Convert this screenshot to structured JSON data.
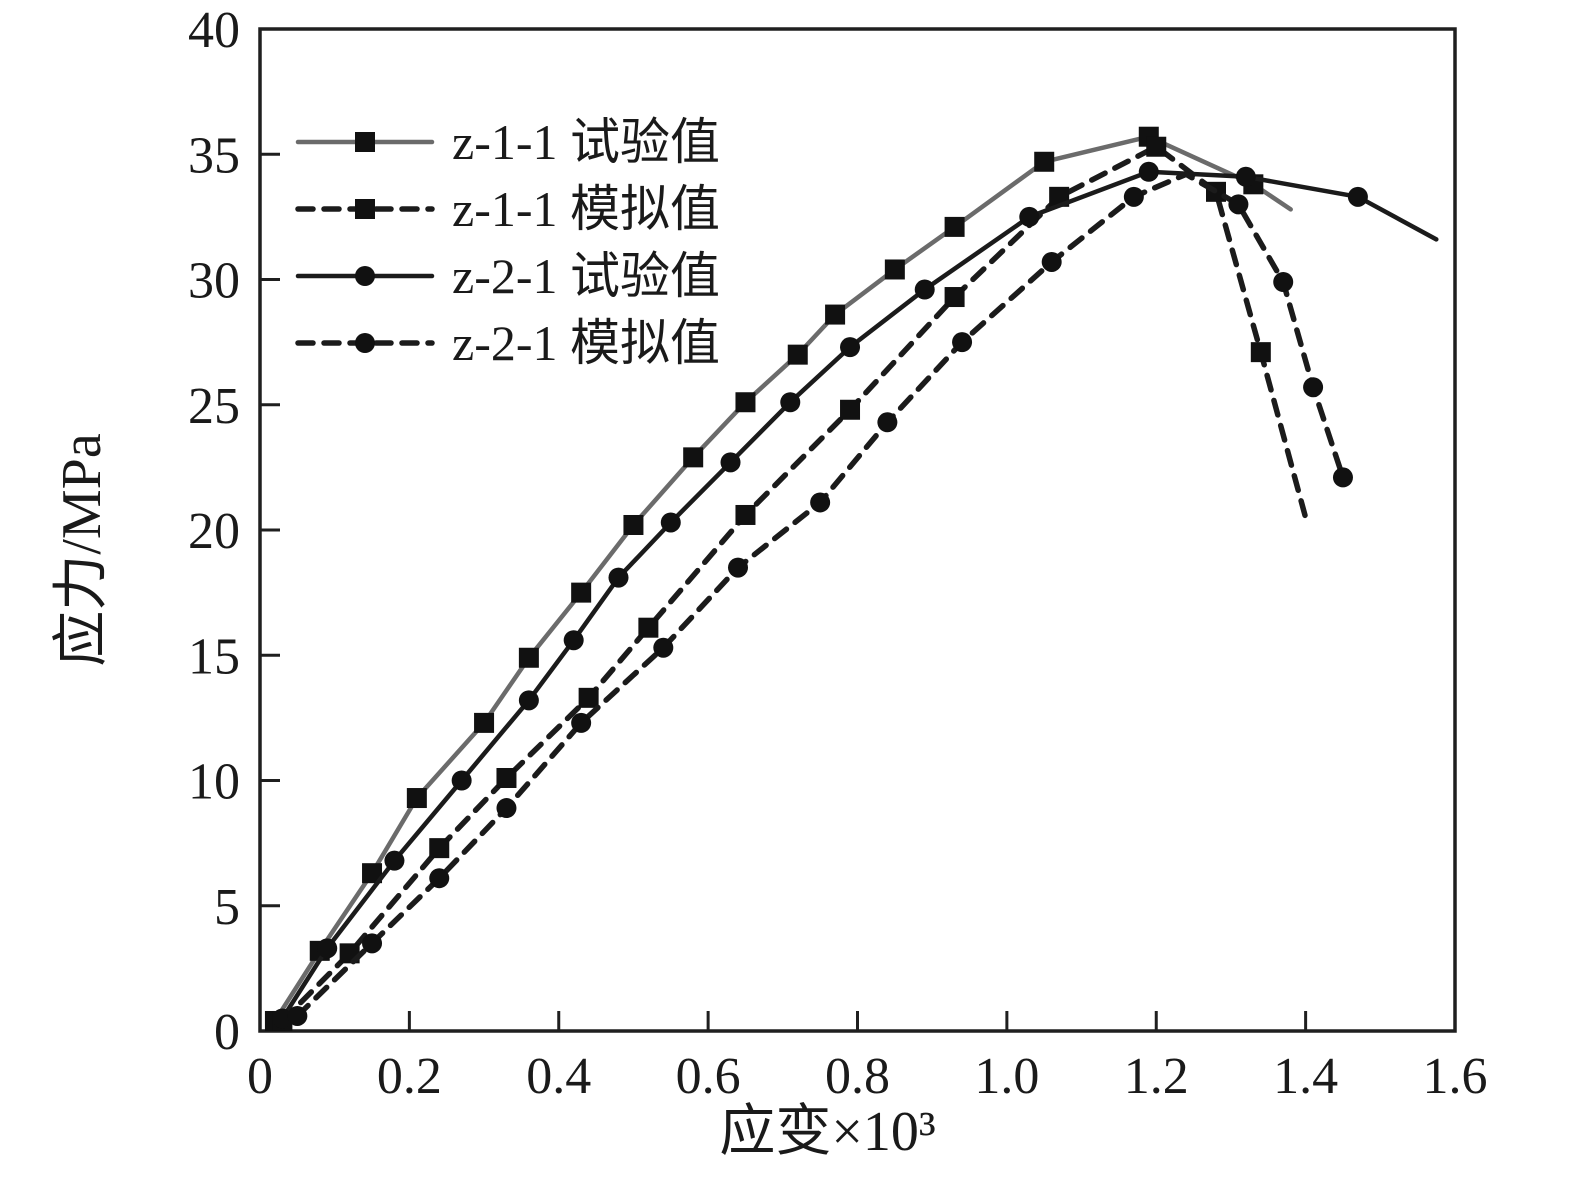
{
  "figure": {
    "background": "#ffffff",
    "frame_color": "#1f1f1f",
    "text_color": "#1a1a1a"
  },
  "chart_data": {
    "type": "line",
    "title": "",
    "xlabel": "应变×10³",
    "ylabel": "应力/MPa",
    "xlim": [
      0,
      1.6
    ],
    "ylim": [
      0,
      40
    ],
    "x_ticks": [
      0.2,
      0.4,
      0.6,
      0.8,
      1.0,
      1.2,
      1.4
    ],
    "x_tick_labels": [
      "0",
      "0.2",
      "0.4",
      "0.6",
      "0.8",
      "1.0",
      "1.2",
      "1.4",
      "1.6"
    ],
    "x_tick_label_values": [
      0,
      0.2,
      0.4,
      0.6,
      0.8,
      1.0,
      1.2,
      1.4,
      1.6
    ],
    "y_ticks": [
      5,
      10,
      15,
      20,
      25,
      30,
      35
    ],
    "y_tick_labels": [
      "0",
      "5",
      "10",
      "15",
      "20",
      "25",
      "30",
      "35",
      "40"
    ],
    "y_tick_label_values": [
      0,
      5,
      10,
      15,
      20,
      25,
      30,
      35,
      40
    ],
    "grid": false,
    "legend_position": "upper-left",
    "series": [
      {
        "name": "z-1-1 试验值",
        "style": "solid",
        "marker": "square",
        "color": "#6b6b6b",
        "marker_color": "#111111",
        "points": [
          [
            0.02,
            0.4
          ],
          [
            0.08,
            3.2
          ],
          [
            0.15,
            6.3
          ],
          [
            0.21,
            9.3
          ],
          [
            0.3,
            12.3
          ],
          [
            0.36,
            14.9
          ],
          [
            0.43,
            17.5
          ],
          [
            0.5,
            20.2
          ],
          [
            0.58,
            22.9
          ],
          [
            0.65,
            25.1
          ],
          [
            0.72,
            27.0
          ],
          [
            0.77,
            28.6
          ],
          [
            0.85,
            30.4
          ],
          [
            0.93,
            32.1
          ],
          [
            1.05,
            34.7
          ],
          [
            1.19,
            35.7
          ],
          [
            1.33,
            33.8
          ],
          [
            1.38,
            32.8,
            0
          ]
        ]
      },
      {
        "name": "z-1-1 模拟值",
        "style": "dashed",
        "marker": "square",
        "color": "#1b1b1b",
        "marker_color": "#111111",
        "points": [
          [
            0.03,
            0.4
          ],
          [
            0.12,
            3.1
          ],
          [
            0.24,
            7.3
          ],
          [
            0.33,
            10.1
          ],
          [
            0.44,
            13.3
          ],
          [
            0.52,
            16.1
          ],
          [
            0.65,
            20.6
          ],
          [
            0.79,
            24.8
          ],
          [
            0.93,
            29.3
          ],
          [
            1.07,
            33.3
          ],
          [
            1.2,
            35.3
          ],
          [
            1.28,
            33.5
          ],
          [
            1.34,
            27.1
          ],
          [
            1.4,
            20.5,
            0
          ]
        ]
      },
      {
        "name": "z-2-1 试验值",
        "style": "solid",
        "marker": "circle",
        "color": "#1b1b1b",
        "marker_color": "#111111",
        "points": [
          [
            0.03,
            0.5
          ],
          [
            0.09,
            3.3
          ],
          [
            0.18,
            6.8
          ],
          [
            0.27,
            10.0
          ],
          [
            0.36,
            13.2
          ],
          [
            0.42,
            15.6
          ],
          [
            0.48,
            18.1
          ],
          [
            0.55,
            20.3
          ],
          [
            0.63,
            22.7
          ],
          [
            0.71,
            25.1
          ],
          [
            0.79,
            27.3
          ],
          [
            0.89,
            29.6
          ],
          [
            1.03,
            32.5
          ],
          [
            1.19,
            34.3
          ],
          [
            1.32,
            34.1
          ],
          [
            1.47,
            33.3
          ],
          [
            1.575,
            31.6,
            0
          ]
        ]
      },
      {
        "name": "z-2-1 模拟值",
        "style": "dashed",
        "marker": "circle",
        "color": "#1b1b1b",
        "marker_color": "#111111",
        "points": [
          [
            0.05,
            0.6
          ],
          [
            0.15,
            3.5
          ],
          [
            0.24,
            6.1
          ],
          [
            0.33,
            8.9
          ],
          [
            0.43,
            12.3
          ],
          [
            0.54,
            15.3
          ],
          [
            0.64,
            18.5
          ],
          [
            0.75,
            21.1
          ],
          [
            0.84,
            24.3
          ],
          [
            0.94,
            27.5
          ],
          [
            1.06,
            30.7
          ],
          [
            1.17,
            33.3
          ],
          [
            1.24,
            34.2,
            0
          ],
          [
            1.31,
            33.0
          ],
          [
            1.37,
            29.9
          ],
          [
            1.41,
            25.7
          ],
          [
            1.45,
            22.1
          ]
        ]
      }
    ],
    "legend_items": [
      "z-1-1 试验值",
      "z-1-1 模拟值",
      "z-2-1 试验值",
      "z-2-1 模拟值"
    ]
  }
}
